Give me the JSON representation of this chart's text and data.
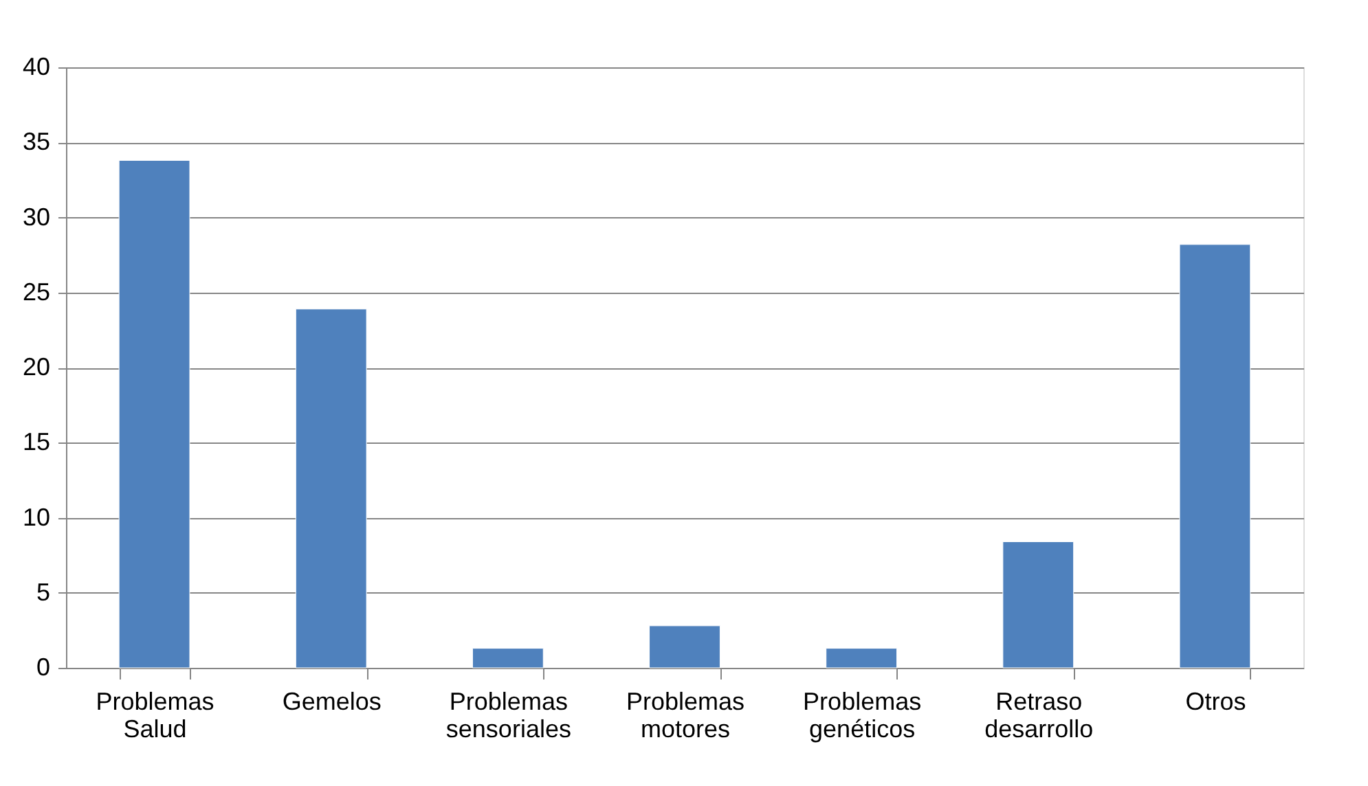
{
  "chart_data": {
    "type": "bar",
    "categories": [
      "Problemas Salud",
      "Gemelos",
      "Problemas sensoriales",
      "Problemas motores",
      "Problemas genéticos",
      "Retraso desarrollo",
      "Otros"
    ],
    "values": [
      33.8,
      23.9,
      1.3,
      2.8,
      1.3,
      8.4,
      28.2
    ],
    "color": "#4f81bd",
    "ylim": [
      0,
      40
    ],
    "yticks": [
      0,
      5,
      10,
      15,
      20,
      25,
      30,
      35,
      40
    ],
    "grid": "y"
  }
}
